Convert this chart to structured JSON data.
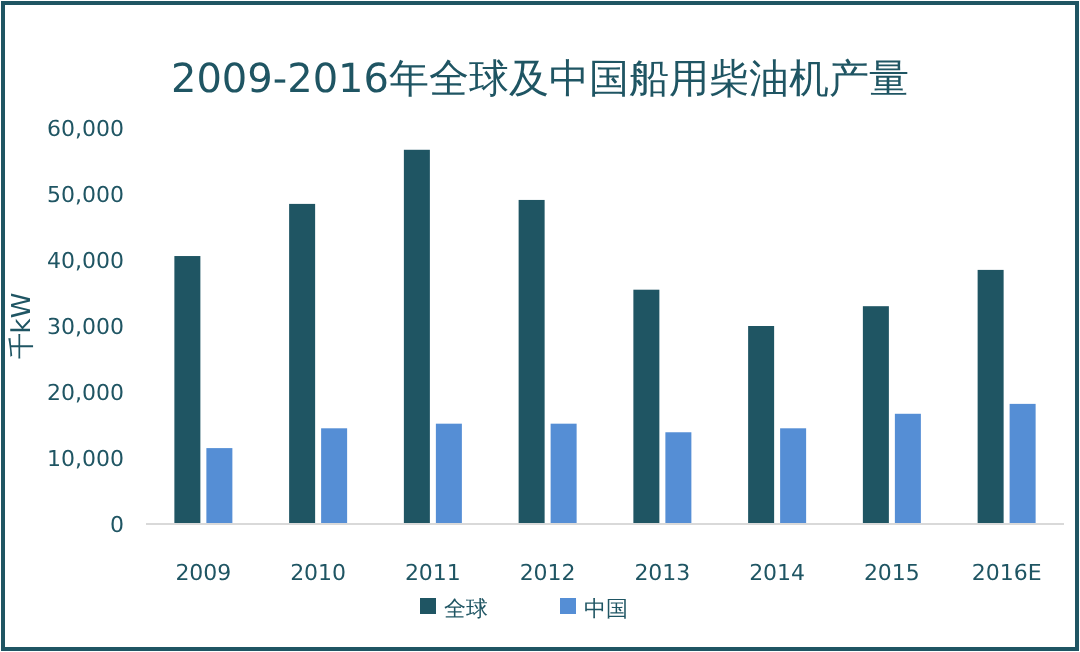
{
  "chart_data": {
    "type": "bar",
    "title": "2009-2016年全球及中国船用柴油机产量",
    "ylabel": "千kW",
    "categories": [
      "2009",
      "2010",
      "2011",
      "2012",
      "2013",
      "2014",
      "2015",
      "2016E"
    ],
    "series": [
      {
        "name": "全球",
        "color": "#1f5563",
        "values": [
          40600,
          48500,
          56700,
          49100,
          35500,
          30000,
          33000,
          38500
        ]
      },
      {
        "name": "中国",
        "color": "#558ed5",
        "values": [
          11500,
          14500,
          15200,
          15200,
          13900,
          14500,
          16700,
          18200
        ]
      }
    ],
    "ylim": [
      0,
      60000
    ],
    "yticks": [
      {
        "value": 0,
        "label": "0"
      },
      {
        "value": 10000,
        "label": "10,000"
      },
      {
        "value": 20000,
        "label": "20,000"
      },
      {
        "value": 30000,
        "label": "30,000"
      },
      {
        "value": 40000,
        "label": "40,000"
      },
      {
        "value": 50000,
        "label": "50,000"
      },
      {
        "value": 60000,
        "label": "60,000"
      }
    ],
    "grid": false,
    "legend": "bottom"
  }
}
